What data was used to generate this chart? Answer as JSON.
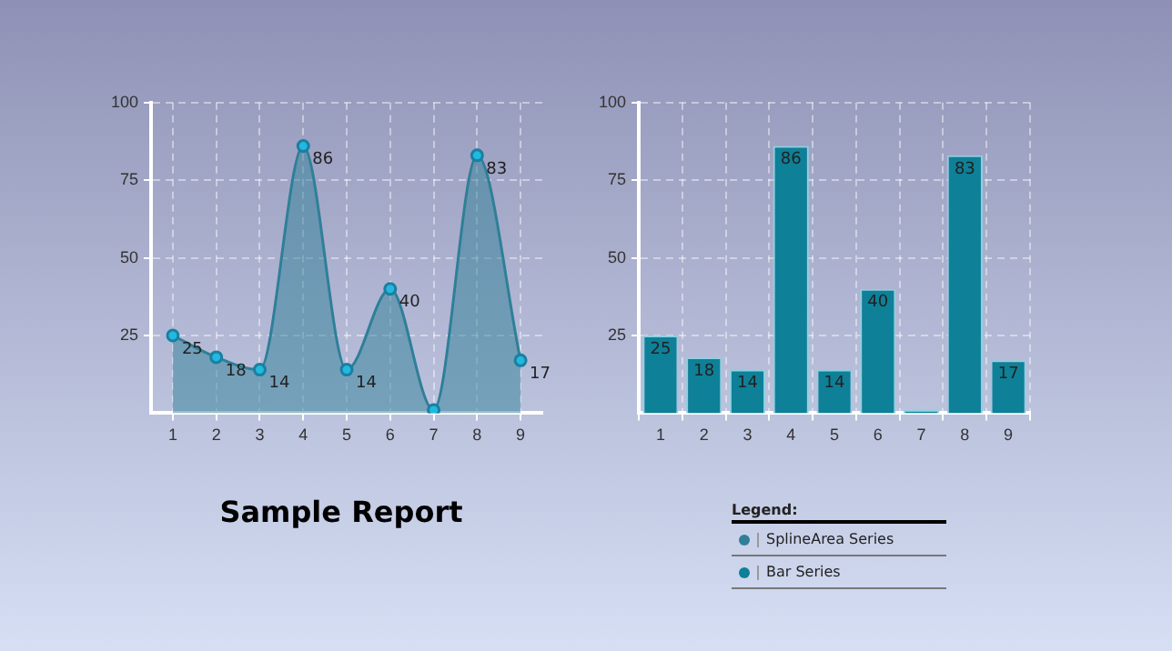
{
  "chart_data": [
    {
      "type": "area",
      "title": "Sample Report",
      "categories": [
        "1",
        "2",
        "3",
        "4",
        "5",
        "6",
        "7",
        "8",
        "9"
      ],
      "series": [
        {
          "name": "SplineArea Series",
          "color": "#2f7f98",
          "values": [
            25,
            18,
            14,
            86,
            14,
            40,
            1,
            83,
            17
          ],
          "value_labels": [
            "25",
            "18",
            "14",
            "86",
            "14",
            "40",
            null,
            "83",
            "17"
          ]
        }
      ],
      "ylim": [
        0,
        100
      ],
      "yticks": [
        25,
        50,
        75,
        100
      ],
      "grid": true,
      "marker": "circle",
      "legend": "bottom right"
    },
    {
      "type": "bar",
      "legend_title": "Legend:",
      "categories": [
        "1",
        "2",
        "3",
        "4",
        "5",
        "6",
        "7",
        "8",
        "9"
      ],
      "series": [
        {
          "name": "Bar Series",
          "color": "#0e8098",
          "values": [
            25,
            18,
            14,
            86,
            14,
            40,
            1,
            83,
            17
          ],
          "value_labels": [
            "25",
            "18",
            "14",
            "86",
            "14",
            "40",
            null,
            "83",
            "17"
          ]
        }
      ],
      "ylim": [
        0,
        100
      ],
      "yticks": [
        25,
        50,
        75,
        100
      ],
      "grid": true,
      "legend": "bottom"
    }
  ]
}
